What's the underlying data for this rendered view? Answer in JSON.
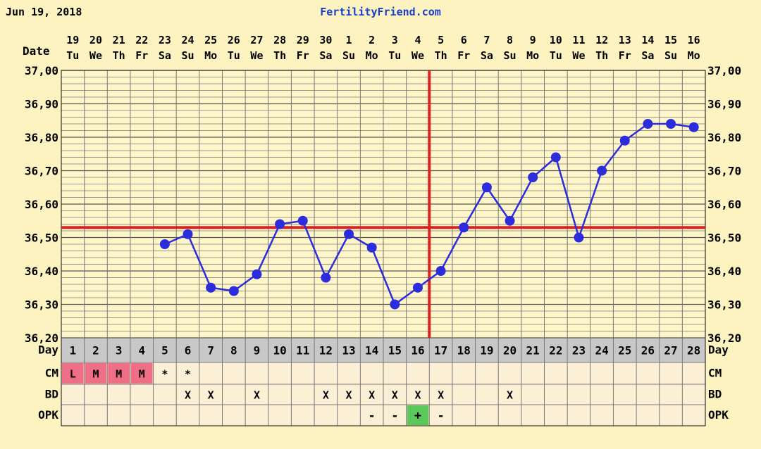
{
  "header": {
    "date": "Jun 19, 2018",
    "site": "FertilityFriend.com"
  },
  "labels": {
    "date": "Date",
    "day": "Day",
    "cm": "CM",
    "bd": "BD",
    "opk": "OPK"
  },
  "colors": {
    "background": "#fcf3c0",
    "plot_bg": "#fef6c8",
    "grid": "#777777",
    "line": "#2c2cdc",
    "coverline": "#dd2020",
    "day_row_bg": "#c8c8c8",
    "cm_menses": "#ef6f86",
    "opk_positive": "#5cc85c",
    "obs_bg": "#fbf0d6"
  },
  "chart_data": {
    "type": "line",
    "title": "",
    "xlabel": "Date",
    "ylabel": "",
    "ylim": [
      36.2,
      37.0
    ],
    "yticks": [
      "37,00",
      "36,90",
      "36,80",
      "36,70",
      "36,60",
      "36,50",
      "36,40",
      "36,30",
      "36,20"
    ],
    "grid": true,
    "dates": [
      "19",
      "20",
      "21",
      "22",
      "23",
      "24",
      "25",
      "26",
      "27",
      "28",
      "29",
      "30",
      "1",
      "2",
      "3",
      "4",
      "5",
      "6",
      "7",
      "8",
      "9",
      "10",
      "11",
      "12",
      "13",
      "14",
      "15",
      "16"
    ],
    "weekdays": [
      "Tu",
      "We",
      "Th",
      "Fr",
      "Sa",
      "Su",
      "Mo",
      "Tu",
      "We",
      "Th",
      "Fr",
      "Sa",
      "Su",
      "Mo",
      "Tu",
      "We",
      "Th",
      "Fr",
      "Sa",
      "Su",
      "Mo",
      "Tu",
      "We",
      "Th",
      "Fr",
      "Sa",
      "Su",
      "Mo"
    ],
    "cycle_days": [
      1,
      2,
      3,
      4,
      5,
      6,
      7,
      8,
      9,
      10,
      11,
      12,
      13,
      14,
      15,
      16,
      17,
      18,
      19,
      20,
      21,
      22,
      23,
      24,
      25,
      26,
      27,
      28
    ],
    "series": [
      {
        "values": [
          null,
          null,
          null,
          null,
          36.48,
          36.51,
          36.35,
          36.34,
          36.39,
          36.54,
          36.55,
          36.38,
          36.51,
          36.47,
          36.3,
          36.35,
          36.4,
          36.53,
          36.65,
          36.55,
          36.68,
          36.74,
          36.5,
          36.7,
          36.79,
          36.84,
          36.84,
          36.83
        ]
      }
    ],
    "coverline": 36.53,
    "ovulation_day": 17,
    "cm": [
      "L",
      "M",
      "M",
      "M",
      "*",
      "*",
      "",
      "",
      "",
      "",
      "",
      "",
      "",
      "",
      "",
      "",
      "",
      "",
      "",
      "",
      "",
      "",
      "",
      "",
      "",
      "",
      "",
      ""
    ],
    "bd": [
      "",
      "",
      "",
      "",
      "",
      "X",
      "X",
      "",
      "X",
      "",
      "",
      "X",
      "X",
      "X",
      "X",
      "X",
      "X",
      "",
      "",
      "X",
      "",
      "",
      "",
      "",
      "",
      "",
      "",
      ""
    ],
    "opk": [
      "",
      "",
      "",
      "",
      "",
      "",
      "",
      "",
      "",
      "",
      "",
      "",
      "",
      "-",
      "-",
      "+",
      "-",
      "",
      "",
      "",
      "",
      "",
      "",
      "",
      "",
      "",
      "",
      ""
    ]
  }
}
